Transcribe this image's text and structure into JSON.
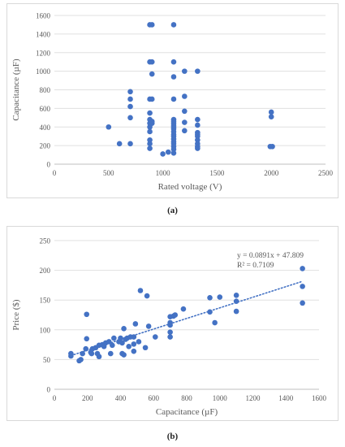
{
  "charts": [
    {
      "caption": "(a)",
      "chart_data": {
        "type": "scatter",
        "xlabel": "Rated voltage (V)",
        "ylabel": "Capacitance (µF)",
        "xlim": [
          0,
          2500
        ],
        "ylim": [
          0,
          1600
        ],
        "xticks": [
          "0",
          "500",
          "1000",
          "1500",
          "2000",
          "2500"
        ],
        "yticks": [
          "0",
          "200",
          "400",
          "600",
          "800",
          "1000",
          "1200",
          "1400",
          "1600"
        ],
        "grid": "horizontal",
        "color": "#4472c4",
        "points": [
          [
            500,
            400
          ],
          [
            600,
            220
          ],
          [
            700,
            780
          ],
          [
            700,
            700
          ],
          [
            700,
            620
          ],
          [
            700,
            500
          ],
          [
            700,
            220
          ],
          [
            880,
            1500
          ],
          [
            900,
            1500
          ],
          [
            880,
            1100
          ],
          [
            900,
            1100
          ],
          [
            900,
            970
          ],
          [
            880,
            700
          ],
          [
            900,
            700
          ],
          [
            880,
            550
          ],
          [
            880,
            480
          ],
          [
            900,
            460
          ],
          [
            880,
            440
          ],
          [
            900,
            440
          ],
          [
            880,
            400
          ],
          [
            880,
            350
          ],
          [
            880,
            260
          ],
          [
            880,
            220
          ],
          [
            880,
            170
          ],
          [
            1000,
            110
          ],
          [
            1050,
            130
          ],
          [
            1100,
            1500
          ],
          [
            1100,
            1100
          ],
          [
            1100,
            940
          ],
          [
            1100,
            700
          ],
          [
            1100,
            480
          ],
          [
            1100,
            460
          ],
          [
            1100,
            440
          ],
          [
            1100,
            420
          ],
          [
            1100,
            400
          ],
          [
            1100,
            380
          ],
          [
            1100,
            350
          ],
          [
            1100,
            320
          ],
          [
            1100,
            300
          ],
          [
            1100,
            270
          ],
          [
            1100,
            240
          ],
          [
            1100,
            220
          ],
          [
            1100,
            190
          ],
          [
            1100,
            160
          ],
          [
            1100,
            120
          ],
          [
            1200,
            1000
          ],
          [
            1200,
            730
          ],
          [
            1200,
            570
          ],
          [
            1200,
            450
          ],
          [
            1200,
            360
          ],
          [
            1320,
            1000
          ],
          [
            1320,
            480
          ],
          [
            1320,
            420
          ],
          [
            1320,
            340
          ],
          [
            1320,
            320
          ],
          [
            1320,
            300
          ],
          [
            1320,
            260
          ],
          [
            1320,
            220
          ],
          [
            1320,
            190
          ],
          [
            1320,
            170
          ],
          [
            2000,
            560
          ],
          [
            2000,
            510
          ],
          [
            1990,
            190
          ],
          [
            2010,
            190
          ]
        ]
      }
    },
    {
      "caption": "(b)",
      "chart_data": {
        "type": "scatter",
        "xlabel": "Capacitance (µF)",
        "ylabel": "Price ($)",
        "xlim": [
          0,
          1600
        ],
        "ylim": [
          0,
          250
        ],
        "xticks": [
          "0",
          "200",
          "400",
          "600",
          "800",
          "1000",
          "1200",
          "1400",
          "1600"
        ],
        "yticks": [
          "0",
          "50",
          "100",
          "150",
          "200",
          "250"
        ],
        "grid": "horizontal",
        "color": "#4472c4",
        "annotations": [
          "y = 0.0891x + 47.809",
          "R² = 0.7109"
        ],
        "trendline": {
          "slope": 0.0891,
          "intercept": 47.809,
          "x_range": [
            100,
            1500
          ],
          "style": "dotted"
        },
        "points": [
          [
            100,
            60
          ],
          [
            100,
            56
          ],
          [
            150,
            48
          ],
          [
            160,
            50
          ],
          [
            170,
            60
          ],
          [
            190,
            68
          ],
          [
            195,
            85
          ],
          [
            195,
            126
          ],
          [
            220,
            62
          ],
          [
            225,
            60
          ],
          [
            230,
            68
          ],
          [
            250,
            70
          ],
          [
            260,
            60
          ],
          [
            270,
            55
          ],
          [
            270,
            74
          ],
          [
            290,
            75
          ],
          [
            300,
            72
          ],
          [
            310,
            78
          ],
          [
            330,
            80
          ],
          [
            340,
            60
          ],
          [
            350,
            74
          ],
          [
            360,
            86
          ],
          [
            390,
            80
          ],
          [
            400,
            86
          ],
          [
            410,
            60
          ],
          [
            410,
            78
          ],
          [
            420,
            58
          ],
          [
            420,
            102
          ],
          [
            430,
            84
          ],
          [
            440,
            86
          ],
          [
            450,
            72
          ],
          [
            460,
            88
          ],
          [
            480,
            64
          ],
          [
            480,
            76
          ],
          [
            480,
            88
          ],
          [
            490,
            110
          ],
          [
            510,
            80
          ],
          [
            520,
            166
          ],
          [
            550,
            70
          ],
          [
            560,
            157
          ],
          [
            570,
            106
          ],
          [
            610,
            88
          ],
          [
            700,
            88
          ],
          [
            700,
            96
          ],
          [
            700,
            108
          ],
          [
            700,
            112
          ],
          [
            700,
            122
          ],
          [
            720,
            123
          ],
          [
            730,
            125
          ],
          [
            780,
            135
          ],
          [
            940,
            154
          ],
          [
            940,
            130
          ],
          [
            970,
            112
          ],
          [
            1000,
            155
          ],
          [
            1100,
            158
          ],
          [
            1100,
            148
          ],
          [
            1100,
            131
          ],
          [
            1500,
            203
          ],
          [
            1500,
            173
          ],
          [
            1500,
            145
          ]
        ]
      }
    }
  ]
}
